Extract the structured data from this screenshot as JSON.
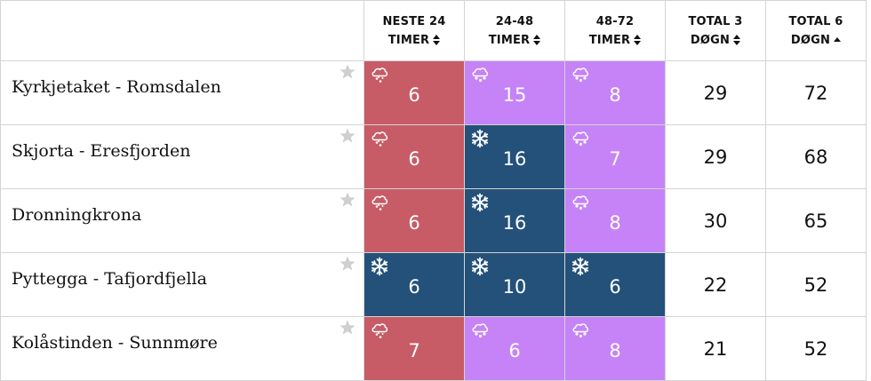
{
  "header": {
    "blank": "",
    "cols": [
      {
        "line1": "NESTE 24",
        "line2": "TIMER",
        "sort": "both"
      },
      {
        "line1": "24-48",
        "line2": "TIMER",
        "sort": "both"
      },
      {
        "line1": "48-72",
        "line2": "TIMER",
        "sort": "both"
      },
      {
        "line1": "TOTAL 3",
        "line2": "DØGN",
        "sort": "both"
      },
      {
        "line1": "TOTAL 6",
        "line2": "DØGN",
        "sort": "asc"
      }
    ]
  },
  "rows": [
    {
      "name": "Kyrkjetaket - Romsdalen",
      "cells": [
        {
          "value": "6",
          "type": "rain-snow",
          "color": "#c75c66"
        },
        {
          "value": "15",
          "type": "sleet",
          "color": "#c583f7"
        },
        {
          "value": "8",
          "type": "sleet",
          "color": "#c583f7"
        }
      ],
      "total3": "29",
      "total6": "72"
    },
    {
      "name": "Skjorta - Eresfjorden",
      "cells": [
        {
          "value": "6",
          "type": "rain-snow",
          "color": "#c75c66"
        },
        {
          "value": "16",
          "type": "snow",
          "color": "#23517a"
        },
        {
          "value": "7",
          "type": "sleet",
          "color": "#c583f7"
        }
      ],
      "total3": "29",
      "total6": "68"
    },
    {
      "name": "Dronningkrona",
      "cells": [
        {
          "value": "6",
          "type": "rain-snow",
          "color": "#c75c66"
        },
        {
          "value": "16",
          "type": "snow",
          "color": "#23517a"
        },
        {
          "value": "8",
          "type": "sleet",
          "color": "#c583f7"
        }
      ],
      "total3": "30",
      "total6": "65"
    },
    {
      "name": "Pyttegga - Tafjordfjella",
      "cells": [
        {
          "value": "6",
          "type": "snow",
          "color": "#23517a"
        },
        {
          "value": "10",
          "type": "snow",
          "color": "#23517a"
        },
        {
          "value": "6",
          "type": "snow",
          "color": "#23517a"
        }
      ],
      "total3": "22",
      "total6": "52"
    },
    {
      "name": "Kolåstinden - Sunnmøre",
      "cells": [
        {
          "value": "7",
          "type": "rain-snow",
          "color": "#c75c66"
        },
        {
          "value": "6",
          "type": "sleet",
          "color": "#c583f7"
        },
        {
          "value": "8",
          "type": "sleet",
          "color": "#c583f7"
        }
      ],
      "total3": "21",
      "total6": "52"
    }
  ]
}
